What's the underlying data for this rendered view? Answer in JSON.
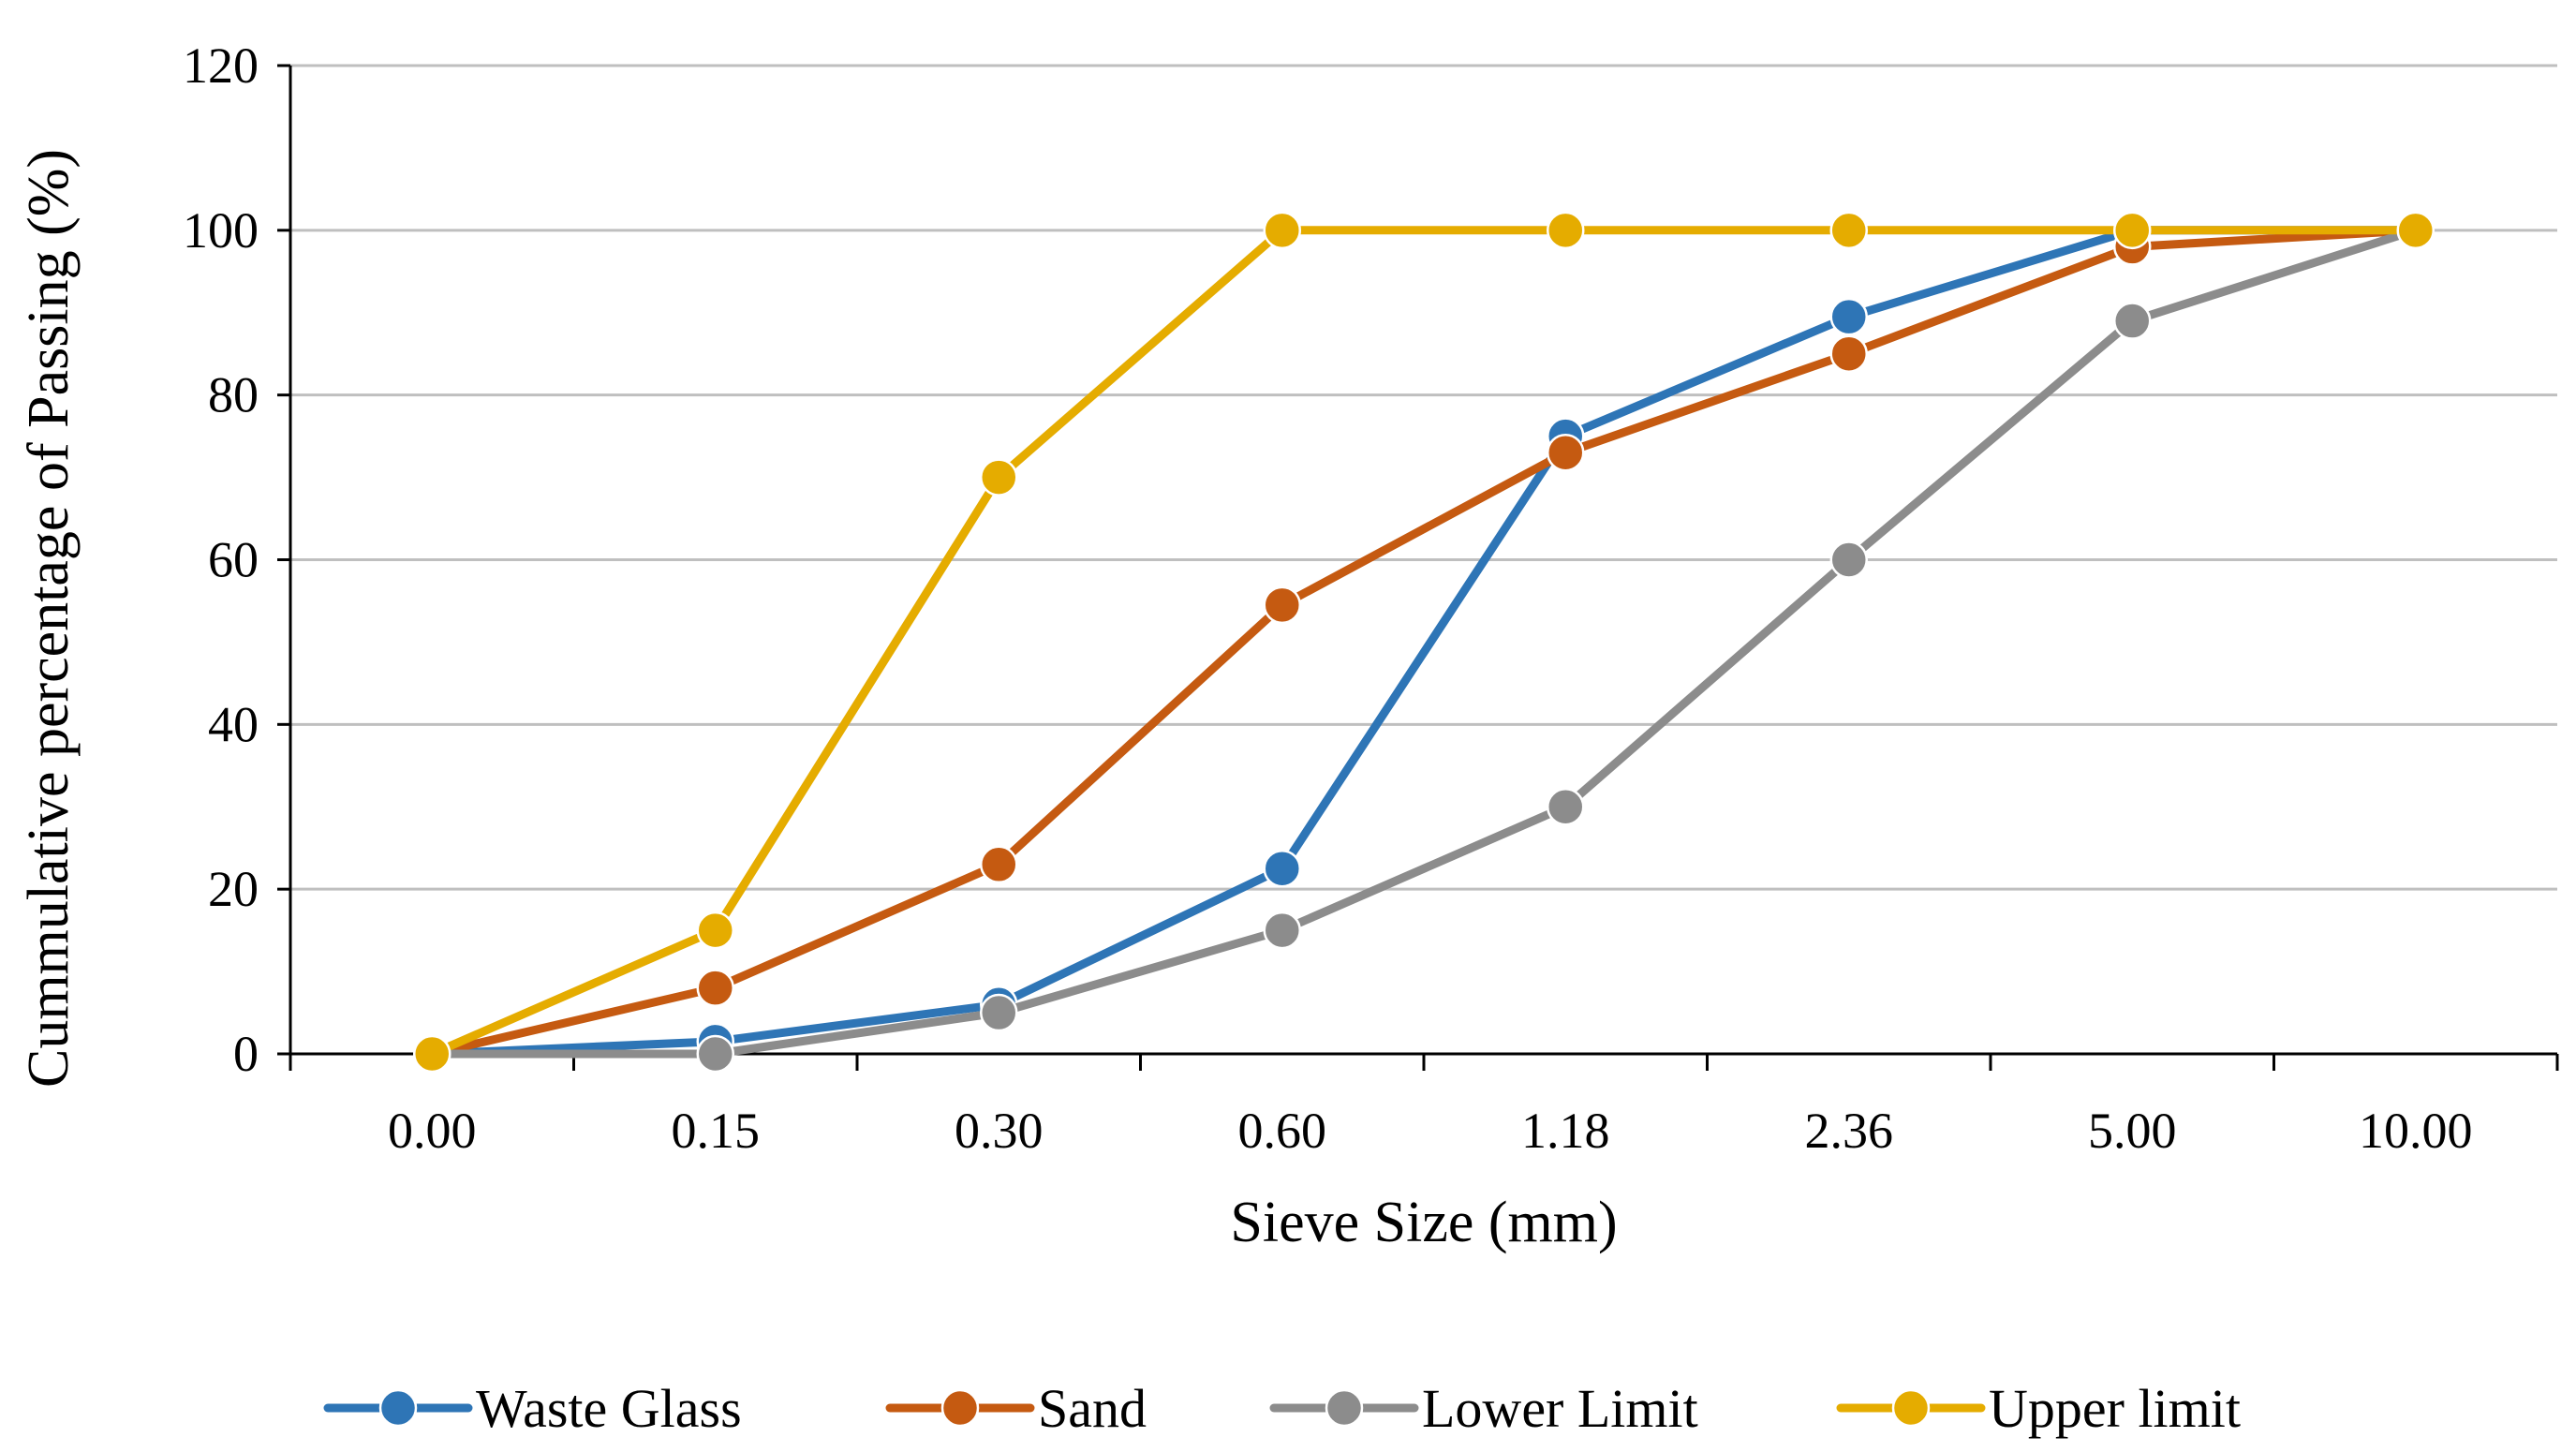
{
  "chart_data": {
    "type": "line",
    "title": "",
    "xlabel": "Sieve Size (mm)",
    "ylabel": "Cummulative percentage of Passing (%)",
    "categories": [
      "0.00",
      "0.15",
      "0.30",
      "0.60",
      "1.18",
      "2.36",
      "5.00",
      "10.00"
    ],
    "ylim": [
      0,
      120
    ],
    "yticks": [
      "0",
      "20",
      "40",
      "60",
      "80",
      "100",
      "120"
    ],
    "grid": true,
    "legend_position": "bottom",
    "series": [
      {
        "name": "Waste Glass",
        "color": "#2e75b6",
        "values": [
          0,
          1.5,
          6,
          22.5,
          75,
          89.5,
          100,
          100
        ]
      },
      {
        "name": "Sand",
        "color": "#c55a11",
        "values": [
          0,
          8,
          23,
          54.5,
          73,
          85,
          98,
          100
        ]
      },
      {
        "name": "Lower Limit",
        "color": "#8c8c8c",
        "values": [
          0,
          0,
          5,
          15,
          30,
          60,
          89,
          100
        ]
      },
      {
        "name": "Upper limit",
        "color": "#e5ac00",
        "values": [
          0,
          15,
          70,
          100,
          100,
          100,
          100,
          100
        ]
      }
    ]
  }
}
